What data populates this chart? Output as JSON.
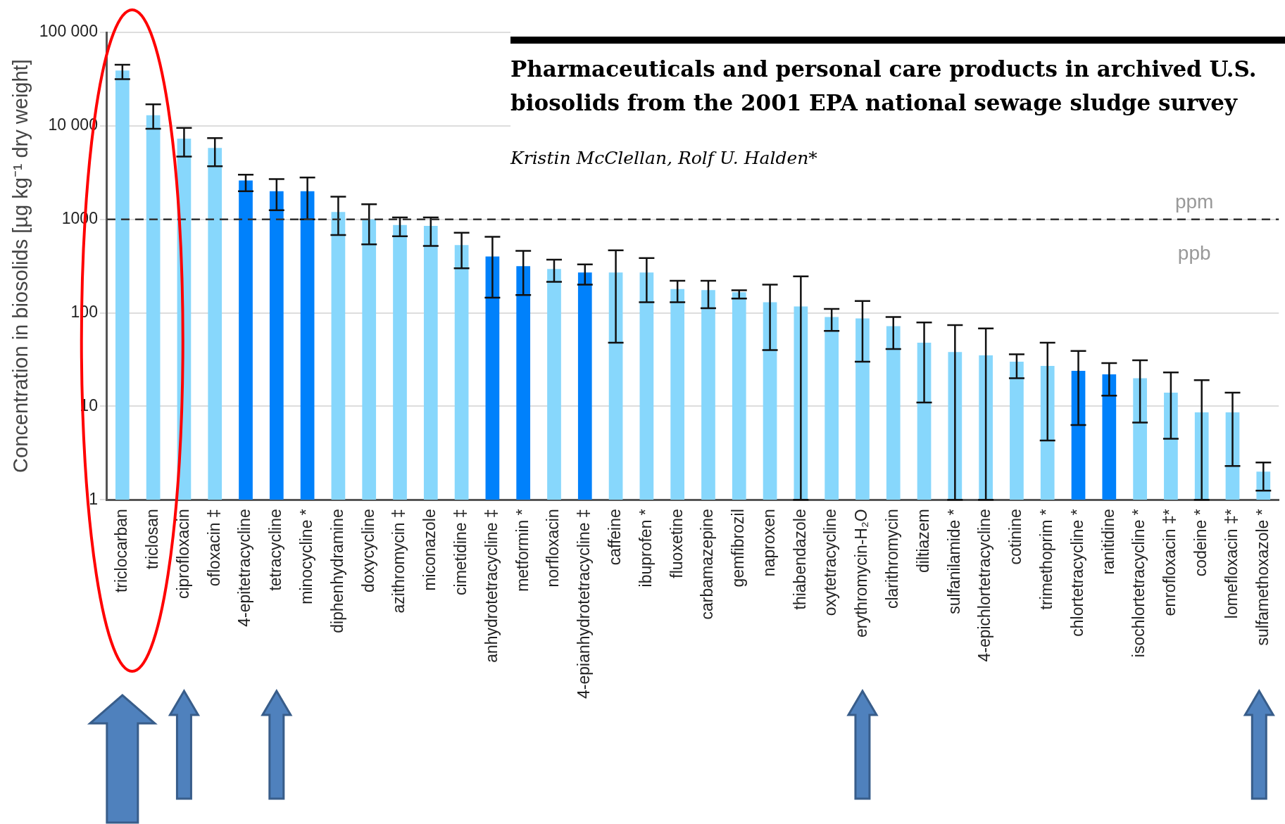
{
  "chart_data": {
    "type": "bar",
    "title": "Pharmaceuticals and personal care products in archived U.S. biosolids from the 2001 EPA national sewage sludge survey",
    "subtitle": "Kristin McClellan, Rolf U. Halden*",
    "ylabel": "Concentration in biosolids [µg kg⁻¹ dry weight]",
    "categories": [
      "triclocarban",
      "triclosan",
      "ciprofloxacin",
      "ofloxacin ‡",
      "4-epitetracycline",
      "tetracycline",
      "minocycline *",
      "diphenhydramine",
      "doxycycline",
      "azithromycin ‡",
      "miconazole",
      "cimetidine ‡",
      "anhydrotetracycline ‡",
      "metformin *",
      "norfloxacin",
      "4-epianhydrotetracycline ‡",
      "caffeine",
      "ibuprofen *",
      "fluoxetine",
      "carbamazepine",
      "gemfibrozil",
      "naproxen",
      "thiabendazole",
      "oxytetracycline",
      "erythromycin-H₂O",
      "clarithromycin",
      "diltiazem",
      "sulfanilamide *",
      "4-epichlortetracycline",
      "cotinine",
      "trimethoprim *",
      "chlortetracycline *",
      "ranitidine",
      "isochlortetracycline *",
      "enrofloxacin ‡*",
      "codeine *",
      "lomefloxacin ‡*",
      "sulfamethoxazole *"
    ],
    "values": [
      39000,
      13000,
      7300,
      5800,
      2600,
      2000,
      2000,
      1200,
      1000,
      870,
      850,
      530,
      400,
      315,
      295,
      270,
      270,
      270,
      180,
      175,
      166,
      130,
      117,
      90,
      87,
      72,
      48,
      38,
      35,
      30,
      27,
      24,
      22,
      20,
      14,
      8.6,
      8.6,
      2.0
    ],
    "colors": [
      "#87d7fc",
      "#87d7fc",
      "#87d7fc",
      "#87d7fc",
      "#0081fb",
      "#0081fb",
      "#0081fb",
      "#87d7fc",
      "#87d7fc",
      "#87d7fc",
      "#87d7fc",
      "#87d7fc",
      "#0081fb",
      "#0081fb",
      "#87d7fc",
      "#0081fb",
      "#87d7fc",
      "#87d7fc",
      "#87d7fc",
      "#87d7fc",
      "#87d7fc",
      "#87d7fc",
      "#87d7fc",
      "#87d7fc",
      "#87d7fc",
      "#87d7fc",
      "#87d7fc",
      "#87d7fc",
      "#87d7fc",
      "#87d7fc",
      "#87d7fc",
      "#0081fb",
      "#0081fb",
      "#87d7fc",
      "#87d7fc",
      "#87d7fc",
      "#87d7fc",
      "#87d7fc"
    ],
    "errors": [
      [
        31600,
        45000
      ],
      [
        9300,
        17000
      ],
      [
        4700,
        9500
      ],
      [
        3700,
        7400
      ],
      [
        2000,
        3000
      ],
      [
        1250,
        2700
      ],
      [
        1000,
        2800
      ],
      [
        680,
        1750
      ],
      [
        540,
        1450
      ],
      [
        660,
        1050
      ],
      [
        520,
        1050
      ],
      [
        300,
        720
      ],
      [
        145,
        650
      ],
      [
        155,
        460
      ],
      [
        215,
        370
      ],
      [
        200,
        330
      ],
      [
        48,
        465
      ],
      [
        130,
        385
      ],
      [
        130,
        220
      ],
      [
        112,
        220
      ],
      [
        142,
        174
      ],
      [
        40,
        200
      ],
      [
        1,
        245
      ],
      [
        64,
        110
      ],
      [
        30,
        134
      ],
      [
        41,
        90
      ],
      [
        11,
        79
      ],
      [
        1,
        74
      ],
      [
        1,
        68
      ],
      [
        20,
        36
      ],
      [
        4.3,
        48
      ],
      [
        6.3,
        39
      ],
      [
        13,
        29
      ],
      [
        6.7,
        31
      ],
      [
        4.5,
        23
      ],
      [
        1,
        19
      ],
      [
        2.3,
        14
      ],
      [
        1.25,
        2.5
      ]
    ],
    "ylim": [
      1,
      100000
    ],
    "yticks": [
      {
        "value": 1,
        "label": "1"
      },
      {
        "value": 10,
        "label": "10"
      },
      {
        "value": 100,
        "label": "100"
      },
      {
        "value": 1000,
        "label": "1000"
      },
      {
        "value": 10000,
        "label": "10 000"
      },
      {
        "value": 100000,
        "label": "100 000"
      }
    ],
    "log": "y",
    "grid": "y",
    "ref_lines": [
      {
        "axis": "y",
        "value": 1000,
        "line_style": "dashed",
        "color": "#333333",
        "label": "ppm"
      }
    ],
    "annotations": [
      "ppb"
    ]
  }
}
